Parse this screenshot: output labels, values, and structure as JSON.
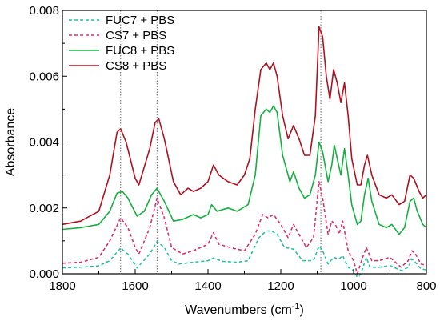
{
  "chart_data": {
    "type": "line",
    "xlabel": "Wavenumbers (cm",
    "xlabel_sup": "-1",
    "xlabel_end": ")",
    "ylabel": "Absorbance",
    "xlim": [
      1800,
      800
    ],
    "ylim": [
      0.0,
      0.008
    ],
    "x_reversed": true,
    "xticks": [
      1800,
      1600,
      1400,
      1200,
      1000,
      800
    ],
    "xtick_labels": [
      "1800",
      "1600",
      "1400",
      "1200",
      "1000",
      "800"
    ],
    "yticks": [
      0,
      0.002,
      0.004,
      0.006,
      0.008
    ],
    "ytick_labels": [
      "0.000",
      "0.002",
      "0.004",
      "0.006",
      "0.008"
    ],
    "reference_lines_x": [
      1640,
      1540,
      1090
    ],
    "legend_position": "top-left",
    "series": [
      {
        "name": "FUC7 + PBS",
        "color": "#26c2a6",
        "dash": "dashed",
        "points": [
          [
            1800,
            0.00018
          ],
          [
            1750,
            0.0002
          ],
          [
            1700,
            0.00024
          ],
          [
            1670,
            0.0004
          ],
          [
            1640,
            0.00078
          ],
          [
            1620,
            0.0006
          ],
          [
            1595,
            0.00018
          ],
          [
            1560,
            0.0006
          ],
          [
            1540,
            0.00098
          ],
          [
            1520,
            0.0008
          ],
          [
            1500,
            0.0004
          ],
          [
            1480,
            0.0003
          ],
          [
            1440,
            0.00035
          ],
          [
            1400,
            0.0004
          ],
          [
            1385,
            0.00048
          ],
          [
            1360,
            0.00038
          ],
          [
            1320,
            0.00035
          ],
          [
            1290,
            0.0004
          ],
          [
            1260,
            0.0011
          ],
          [
            1240,
            0.0013
          ],
          [
            1225,
            0.0013
          ],
          [
            1210,
            0.0012
          ],
          [
            1190,
            0.0008
          ],
          [
            1165,
            0.00075
          ],
          [
            1140,
            0.0004
          ],
          [
            1110,
            0.0004
          ],
          [
            1095,
            0.00085
          ],
          [
            1085,
            0.0007
          ],
          [
            1070,
            0.0003
          ],
          [
            1055,
            0.0005
          ],
          [
            1040,
            0.00045
          ],
          [
            1030,
            0.00055
          ],
          [
            1015,
            0.0002
          ],
          [
            1000,
            0.0001
          ],
          [
            990,
            -0.0001
          ],
          [
            980,
            0.0
          ],
          [
            965,
            0.0005
          ],
          [
            955,
            0.0002
          ],
          [
            930,
            0.0002
          ],
          [
            900,
            0.00025
          ],
          [
            870,
            0.0001
          ],
          [
            850,
            0.0002
          ],
          [
            840,
            0.00045
          ],
          [
            830,
            0.00035
          ],
          [
            815,
            0.00015
          ],
          [
            800,
            0.00012
          ]
        ]
      },
      {
        "name": "CS7 + PBS",
        "color": "#e0306a",
        "dash": "dashed",
        "points": [
          [
            1800,
            0.00032
          ],
          [
            1750,
            0.00035
          ],
          [
            1700,
            0.0005
          ],
          [
            1670,
            0.001
          ],
          [
            1640,
            0.0017
          ],
          [
            1620,
            0.0014
          ],
          [
            1600,
            0.0008
          ],
          [
            1590,
            0.0006
          ],
          [
            1560,
            0.0014
          ],
          [
            1540,
            0.0023
          ],
          [
            1520,
            0.0017
          ],
          [
            1500,
            0.0008
          ],
          [
            1470,
            0.0006
          ],
          [
            1440,
            0.0007
          ],
          [
            1400,
            0.0009
          ],
          [
            1385,
            0.00125
          ],
          [
            1370,
            0.0009
          ],
          [
            1340,
            0.0008
          ],
          [
            1300,
            0.0007
          ],
          [
            1270,
            0.0012
          ],
          [
            1250,
            0.0018
          ],
          [
            1235,
            0.0017
          ],
          [
            1220,
            0.0018
          ],
          [
            1200,
            0.0015
          ],
          [
            1180,
            0.0011
          ],
          [
            1165,
            0.0015
          ],
          [
            1150,
            0.0012
          ],
          [
            1130,
            0.0008
          ],
          [
            1110,
            0.0011
          ],
          [
            1095,
            0.0028
          ],
          [
            1085,
            0.0023
          ],
          [
            1070,
            0.0012
          ],
          [
            1060,
            0.0016
          ],
          [
            1050,
            0.0015
          ],
          [
            1040,
            0.0012
          ],
          [
            1030,
            0.0016
          ],
          [
            1015,
            0.0007
          ],
          [
            1000,
            0.0004
          ],
          [
            990,
            0.0
          ],
          [
            975,
            0.0005
          ],
          [
            965,
            0.0008
          ],
          [
            950,
            0.0004
          ],
          [
            930,
            0.0004
          ],
          [
            900,
            0.0005
          ],
          [
            870,
            0.0002
          ],
          [
            850,
            0.0004
          ],
          [
            840,
            0.0007
          ],
          [
            830,
            0.0006
          ],
          [
            815,
            0.0003
          ],
          [
            800,
            0.00025
          ]
        ]
      },
      {
        "name": "FUC8 + PBS",
        "color": "#16b040",
        "dash": "solid",
        "points": [
          [
            1800,
            0.00135
          ],
          [
            1750,
            0.0014
          ],
          [
            1700,
            0.0015
          ],
          [
            1670,
            0.0019
          ],
          [
            1650,
            0.00245
          ],
          [
            1635,
            0.0025
          ],
          [
            1620,
            0.0023
          ],
          [
            1595,
            0.00175
          ],
          [
            1575,
            0.0019
          ],
          [
            1555,
            0.0024
          ],
          [
            1540,
            0.0026
          ],
          [
            1520,
            0.0022
          ],
          [
            1495,
            0.0016
          ],
          [
            1470,
            0.00165
          ],
          [
            1440,
            0.0018
          ],
          [
            1420,
            0.0017
          ],
          [
            1400,
            0.0018
          ],
          [
            1390,
            0.0021
          ],
          [
            1375,
            0.0019
          ],
          [
            1345,
            0.002
          ],
          [
            1320,
            0.0019
          ],
          [
            1290,
            0.0021
          ],
          [
            1270,
            0.003
          ],
          [
            1255,
            0.0048
          ],
          [
            1240,
            0.005
          ],
          [
            1230,
            0.0049
          ],
          [
            1220,
            0.0051
          ],
          [
            1210,
            0.0049
          ],
          [
            1195,
            0.0036
          ],
          [
            1175,
            0.0028
          ],
          [
            1165,
            0.0031
          ],
          [
            1150,
            0.0026
          ],
          [
            1135,
            0.0023
          ],
          [
            1120,
            0.0024
          ],
          [
            1105,
            0.003
          ],
          [
            1095,
            0.004
          ],
          [
            1085,
            0.0037
          ],
          [
            1070,
            0.0028
          ],
          [
            1060,
            0.0033
          ],
          [
            1053,
            0.0039
          ],
          [
            1045,
            0.0035
          ],
          [
            1035,
            0.003
          ],
          [
            1025,
            0.0038
          ],
          [
            1015,
            0.003
          ],
          [
            1005,
            0.0021
          ],
          [
            990,
            0.0015
          ],
          [
            980,
            0.0016
          ],
          [
            970,
            0.0024
          ],
          [
            960,
            0.0029
          ],
          [
            950,
            0.0022
          ],
          [
            930,
            0.0015
          ],
          [
            910,
            0.0014
          ],
          [
            895,
            0.0015
          ],
          [
            875,
            0.0012
          ],
          [
            860,
            0.0014
          ],
          [
            845,
            0.0022
          ],
          [
            835,
            0.0023
          ],
          [
            825,
            0.0019
          ],
          [
            810,
            0.0015
          ],
          [
            800,
            0.0014
          ]
        ]
      },
      {
        "name": "CS8 + PBS",
        "color": "#b01020",
        "dash": "solid",
        "points": [
          [
            1800,
            0.0015
          ],
          [
            1750,
            0.0016
          ],
          [
            1700,
            0.0019
          ],
          [
            1670,
            0.003
          ],
          [
            1650,
            0.0043
          ],
          [
            1640,
            0.0044
          ],
          [
            1625,
            0.004
          ],
          [
            1600,
            0.0029
          ],
          [
            1590,
            0.0027
          ],
          [
            1560,
            0.0038
          ],
          [
            1545,
            0.0046
          ],
          [
            1535,
            0.0047
          ],
          [
            1520,
            0.0041
          ],
          [
            1495,
            0.0028
          ],
          [
            1475,
            0.0024
          ],
          [
            1455,
            0.0026
          ],
          [
            1440,
            0.0025
          ],
          [
            1420,
            0.0026
          ],
          [
            1400,
            0.0028
          ],
          [
            1385,
            0.0033
          ],
          [
            1370,
            0.003
          ],
          [
            1345,
            0.0028
          ],
          [
            1320,
            0.0027
          ],
          [
            1300,
            0.003
          ],
          [
            1285,
            0.0035
          ],
          [
            1270,
            0.005
          ],
          [
            1255,
            0.0062
          ],
          [
            1240,
            0.0064
          ],
          [
            1230,
            0.0062
          ],
          [
            1220,
            0.0064
          ],
          [
            1210,
            0.006
          ],
          [
            1195,
            0.0048
          ],
          [
            1180,
            0.0041
          ],
          [
            1165,
            0.0045
          ],
          [
            1150,
            0.0041
          ],
          [
            1135,
            0.0036
          ],
          [
            1120,
            0.0036
          ],
          [
            1105,
            0.0048
          ],
          [
            1095,
            0.0075
          ],
          [
            1085,
            0.0072
          ],
          [
            1075,
            0.006
          ],
          [
            1065,
            0.0053
          ],
          [
            1055,
            0.0062
          ],
          [
            1045,
            0.0058
          ],
          [
            1035,
            0.0052
          ],
          [
            1025,
            0.0058
          ],
          [
            1015,
            0.0048
          ],
          [
            1005,
            0.0035
          ],
          [
            990,
            0.0027
          ],
          [
            980,
            0.0027
          ],
          [
            970,
            0.0033
          ],
          [
            962,
            0.0036
          ],
          [
            950,
            0.003
          ],
          [
            930,
            0.0024
          ],
          [
            910,
            0.0023
          ],
          [
            895,
            0.0024
          ],
          [
            875,
            0.0021
          ],
          [
            860,
            0.0022
          ],
          [
            845,
            0.003
          ],
          [
            835,
            0.0029
          ],
          [
            820,
            0.0025
          ],
          [
            810,
            0.0023
          ],
          [
            800,
            0.0024
          ]
        ]
      }
    ]
  }
}
